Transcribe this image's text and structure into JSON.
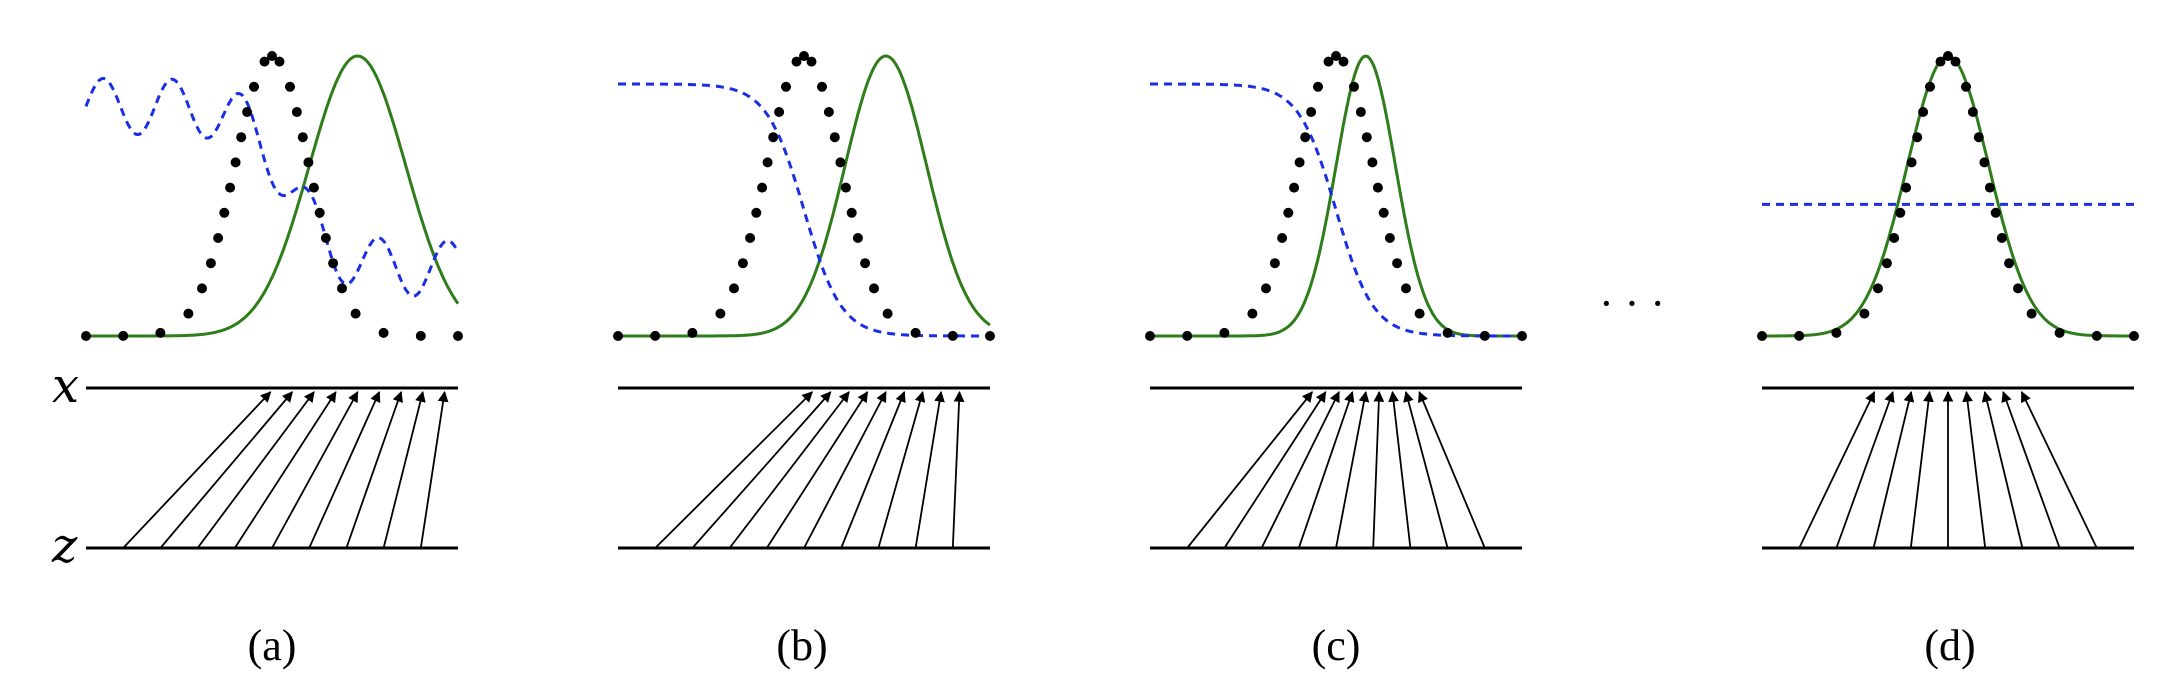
{
  "axis_labels": {
    "x": "x",
    "z": "z"
  },
  "ellipsis": "· · ·",
  "colors": {
    "data": "#000000",
    "generator": "#2e7d1a",
    "discriminator": "#1a2ee6",
    "domain_line": "#000000",
    "mapping": "#000000"
  },
  "panels": [
    {
      "id": "a",
      "caption": "(a)",
      "discriminator": "oscillating",
      "generator_mean": 0.73,
      "generator_sd": 0.13
    },
    {
      "id": "b",
      "caption": "(b)",
      "discriminator": "step-down",
      "generator_mean": 0.72,
      "generator_sd": 0.11
    },
    {
      "id": "c",
      "caption": "(c)",
      "discriminator": "step-down",
      "generator_mean": 0.58,
      "generator_sd": 0.08
    },
    {
      "id": "d",
      "caption": "(d)",
      "discriminator": "flat-half",
      "generator_mean": 0.5,
      "generator_sd": 0.11
    }
  ],
  "data_distribution": {
    "mean": 0.5,
    "sd": 0.1
  }
}
